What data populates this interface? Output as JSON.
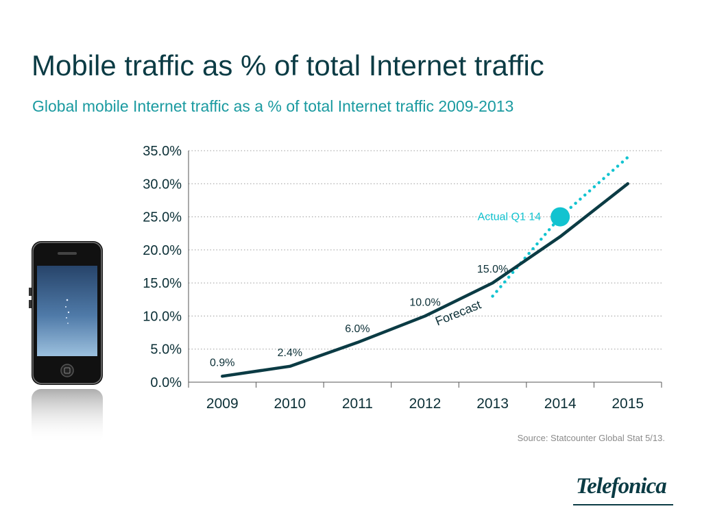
{
  "slide": {
    "title": "Mobile traffic as % of total Internet traffic",
    "subtitle": "Global mobile Internet traffic as a % of total Internet traffic 2009-2013",
    "source": "Source: Statcounter Global Stat 5/13.",
    "logo_text": "Telefonica",
    "colors": {
      "title": "#0b3b44",
      "subtitle": "#1a9aa0",
      "line": "#0b3b44",
      "forecast": "#12c3d0",
      "actual_marker": "#12c3d0",
      "grid": "#9a9a9a"
    },
    "phone_icon": "smartphone-icon"
  },
  "chart_data": {
    "type": "line",
    "categories": [
      "2009",
      "2010",
      "2011",
      "2012",
      "2013",
      "2014",
      "2015"
    ],
    "series": [
      {
        "values": [
          0.9,
          2.4,
          6.0,
          10.0,
          15.0,
          22.0,
          30.0
        ],
        "data_labels": [
          "0.9%",
          "2.4%",
          "6.0%",
          "10.0%",
          "15.0%",
          null,
          null
        ]
      },
      {
        "values": [
          null,
          null,
          null,
          null,
          13.0,
          25.0,
          34.0
        ],
        "style": "dotted"
      }
    ],
    "annotations": [
      {
        "text": "Forecast",
        "category": "2013",
        "value": 13.0
      },
      {
        "text": "Actual Q1 14",
        "category": "2014",
        "value": 25.0,
        "marker": "circle"
      }
    ],
    "yticks": [
      "0.0%",
      "5.0%",
      "10.0%",
      "15.0%",
      "20.0%",
      "25.0%",
      "30.0%",
      "35.0%"
    ],
    "ylim": [
      0,
      35
    ],
    "grid": true,
    "legend": "none"
  }
}
